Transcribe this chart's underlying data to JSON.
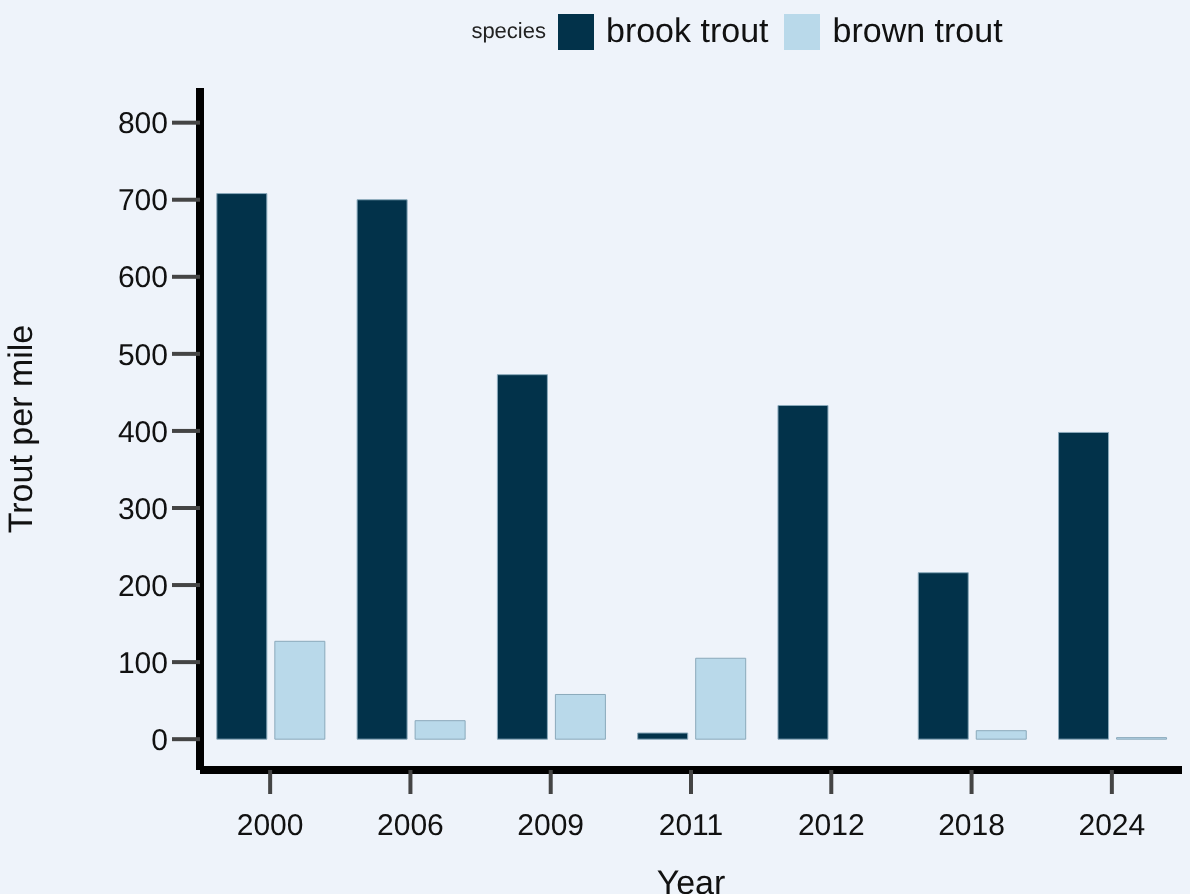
{
  "chart_data": {
    "type": "bar",
    "xlabel": "Year",
    "ylabel": "Trout per mile",
    "legend_title": "species",
    "legend": "top",
    "categories": [
      "2000",
      "2006",
      "2009",
      "2011",
      "2012",
      "2018",
      "2024"
    ],
    "series": [
      {
        "name": "brook trout",
        "color": "#02324a",
        "values": [
          708,
          700,
          473,
          8,
          433,
          216,
          398
        ]
      },
      {
        "name": "brown trout",
        "color": "#b9d9ea",
        "values": [
          127,
          24,
          58,
          105,
          0,
          11,
          2
        ]
      }
    ],
    "ylim": [
      -40,
      845
    ],
    "yticks": [
      0,
      100,
      200,
      300,
      400,
      500,
      600,
      700,
      800
    ],
    "grid": false
  }
}
